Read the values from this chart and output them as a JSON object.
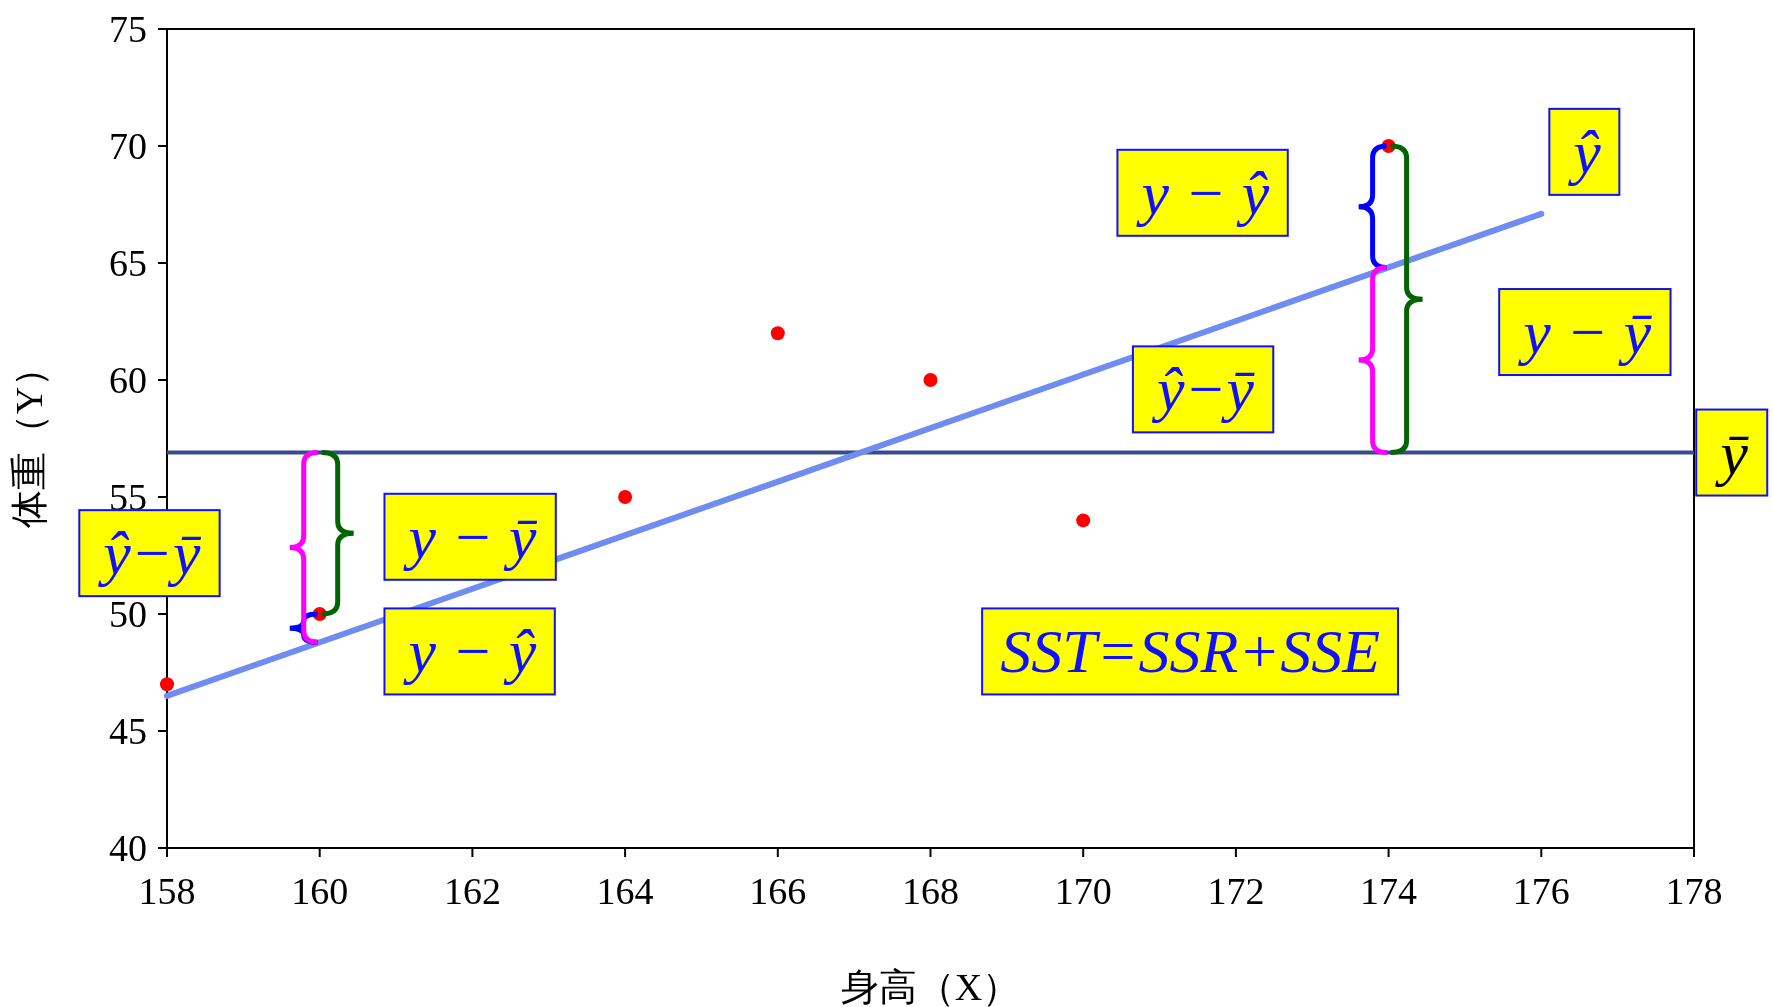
{
  "chart_data": {
    "type": "scatter",
    "xlabel": "身高（X）",
    "ylabel": "体重（Y）",
    "x": [
      158,
      160,
      164,
      166,
      168,
      170,
      174
    ],
    "series": [
      {
        "color": "#ff0000",
        "values": [
          47,
          50,
          55,
          62,
          60,
          54,
          70
        ]
      },
      {
        "type": "line",
        "color": "#6f8cf0",
        "x": [
          158,
          176
        ],
        "values": [
          46.5,
          67.1
        ]
      }
    ],
    "ref_lines": [
      {
        "axis": "y",
        "value": 56.9,
        "label": "ȳ",
        "color": "#3b4a8a"
      }
    ],
    "xlim": [
      158,
      178
    ],
    "xticks": [
      158,
      160,
      162,
      164,
      166,
      168,
      170,
      172,
      174,
      176,
      178
    ],
    "ylim": [
      40,
      75
    ],
    "yticks": [
      40,
      45,
      50,
      55,
      60,
      65,
      70,
      75
    ],
    "grid": false,
    "annotations": [
      "ŷ",
      "y − ŷ",
      "ŷ−ȳ",
      "y − ȳ",
      "ŷ−ȳ",
      "y − ȳ",
      "y − ŷ",
      "SST=SSR+SSE"
    ]
  }
}
